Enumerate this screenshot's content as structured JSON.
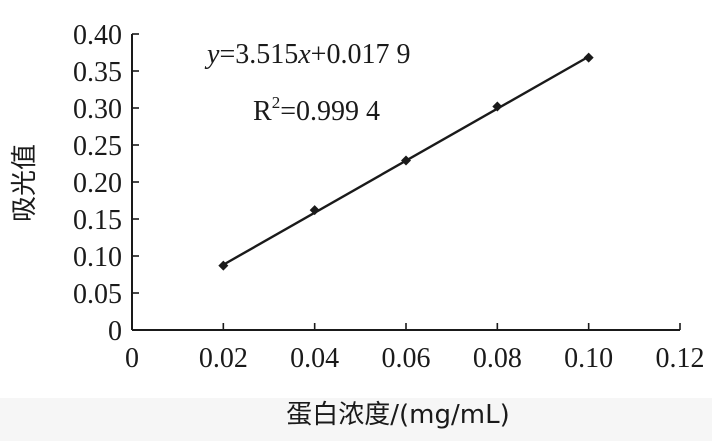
{
  "chart_data": {
    "type": "scatter",
    "title": "",
    "xlabel": "蛋白浓度/(mg/mL)",
    "ylabel": "吸光值",
    "xlim": [
      0,
      0.12
    ],
    "ylim": [
      0,
      0.4
    ],
    "x_ticks": [
      {
        "value": 0,
        "label": "0"
      },
      {
        "value": 0.02,
        "label": "0.02"
      },
      {
        "value": 0.04,
        "label": "0.04"
      },
      {
        "value": 0.06,
        "label": "0.06"
      },
      {
        "value": 0.08,
        "label": "0.08"
      },
      {
        "value": 0.1,
        "label": "0.10"
      },
      {
        "value": 0.12,
        "label": "0.12"
      }
    ],
    "y_ticks": [
      {
        "value": 0,
        "label": "0"
      },
      {
        "value": 0.05,
        "label": "0.05"
      },
      {
        "value": 0.1,
        "label": "0.10"
      },
      {
        "value": 0.15,
        "label": "0.15"
      },
      {
        "value": 0.2,
        "label": "0.20"
      },
      {
        "value": 0.25,
        "label": "0.25"
      },
      {
        "value": 0.3,
        "label": "0.30"
      },
      {
        "value": 0.35,
        "label": "0.35"
      },
      {
        "value": 0.4,
        "label": "0.40"
      }
    ],
    "grid": false,
    "series": [
      {
        "x": [
          0.02,
          0.04,
          0.06,
          0.08,
          0.1
        ],
        "y": [
          0.087,
          0.162,
          0.229,
          0.302,
          0.368
        ],
        "marker": "diamond",
        "color": "#1a1a1a"
      }
    ],
    "trendline": {
      "slope": 3.515,
      "intercept": 0.0179,
      "x_range": [
        0.02,
        0.1
      ],
      "color": "#1a1a1a"
    },
    "annotations": {
      "equation": {
        "y_var": "y",
        "eq_mid": "=3.515",
        "x_var": "x",
        "eq_tail": "+0.017 9"
      },
      "r_squared": {
        "r": "R",
        "sup": "2",
        "value": "=0.999 4"
      }
    }
  }
}
